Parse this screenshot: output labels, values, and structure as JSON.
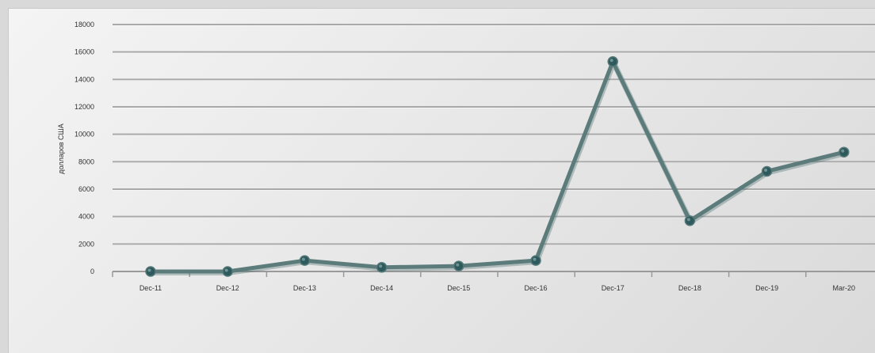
{
  "chart_data": {
    "type": "line",
    "categories": [
      "Dec-11",
      "Dec-12",
      "Dec-13",
      "Dec-14",
      "Dec-15",
      "Dec-16",
      "Dec-17",
      "Dec-18",
      "Dec-19",
      "Mar-20"
    ],
    "series": [
      {
        "values": [
          0,
          0,
          800,
          300,
          400,
          800,
          15300,
          3700,
          7300,
          8700
        ]
      }
    ],
    "title": "",
    "xlabel": "",
    "ylabel": "долларов США",
    "ylim": [
      0,
      18000
    ],
    "yticks": [
      0,
      2000,
      4000,
      6000,
      8000,
      10000,
      12000,
      14000,
      16000,
      18000
    ],
    "grid": true,
    "colors": {
      "line": "#5c7b7b",
      "marker": "#2f5a5d",
      "grid": "#a9a9a9"
    }
  }
}
